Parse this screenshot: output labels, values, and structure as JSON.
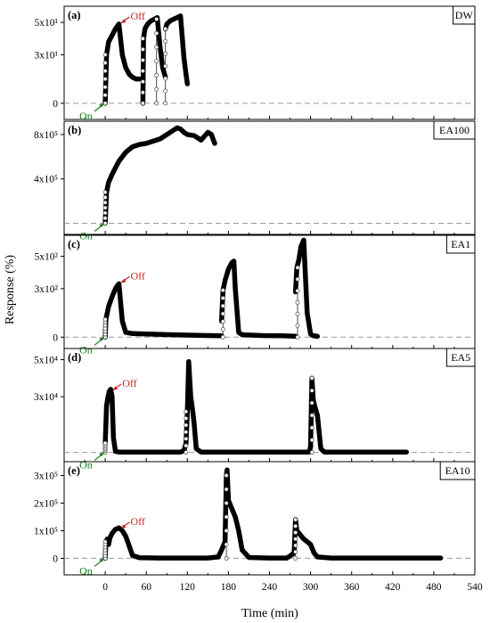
{
  "figure": {
    "ylabel": "Response (%)",
    "xlabel": "Time (min)",
    "x_ticks": [
      "0",
      "60",
      "120",
      "180",
      "240",
      "300",
      "360",
      "420",
      "480",
      "540"
    ],
    "on_label": "On",
    "off_label": "Off",
    "colors": {
      "on": "#1a7a1a",
      "off": "#cc1f1f",
      "trace": "#000000",
      "zero_line": "#999999"
    }
  },
  "chart_data": [
    {
      "type": "line",
      "panel": "(a)",
      "label": "DW",
      "xlim": [
        -60,
        540
      ],
      "ylim": [
        -10,
        60
      ],
      "y_ticks": [
        {
          "v": 0,
          "t": "0"
        },
        {
          "v": 30,
          "t": "3x10¹"
        },
        {
          "v": 50,
          "t": "5x10¹"
        }
      ],
      "annotations": {
        "on": [
          0,
          0
        ],
        "off": [
          20,
          49
        ]
      },
      "series": [
        {
          "x": [
            0,
            2,
            5,
            10,
            15,
            20,
            25,
            30,
            35,
            40,
            45,
            50
          ],
          "y": [
            0,
            30,
            38,
            42,
            46,
            49,
            30,
            22,
            18,
            16,
            15,
            15
          ]
        },
        {
          "x": [
            55,
            56,
            58,
            62,
            67,
            72,
            76,
            80,
            84,
            88
          ],
          "y": [
            0,
            40,
            46,
            49,
            51,
            52,
            53,
            35,
            22,
            16
          ]
        },
        {
          "x": [
            88,
            90,
            95,
            100,
            105,
            110,
            115,
            118,
            120
          ],
          "y": [
            46,
            49,
            51,
            52,
            53,
            54,
            28,
            18,
            12
          ]
        }
      ],
      "jumps": [
        {
          "x": 0,
          "y0": 0,
          "y1": 30
        },
        {
          "x": 55,
          "y0": 0,
          "y1": 40
        },
        {
          "x": 75,
          "y0": 0,
          "y1": 52
        },
        {
          "x": 88,
          "y0": 0,
          "y1": 46
        }
      ]
    },
    {
      "type": "line",
      "panel": "(b)",
      "label": "EA100",
      "xlim": [
        -60,
        540
      ],
      "ylim": [
        -100000,
        920000
      ],
      "y_ticks": [
        {
          "v": 400000,
          "t": "4x10⁵"
        },
        {
          "v": 800000,
          "t": "8x10⁵"
        }
      ],
      "annotations": {
        "on": [
          0,
          0
        ],
        "off": null
      },
      "series": [
        {
          "x": [
            0,
            2,
            5,
            10,
            15,
            20,
            30,
            40,
            50,
            60,
            70,
            80,
            90,
            100,
            105,
            110,
            115,
            120,
            130,
            140,
            150,
            155,
            160
          ],
          "y": [
            0,
            280000,
            370000,
            440000,
            500000,
            560000,
            640000,
            690000,
            710000,
            720000,
            740000,
            760000,
            800000,
            840000,
            860000,
            850000,
            820000,
            800000,
            790000,
            750000,
            820000,
            800000,
            720000
          ]
        }
      ],
      "jumps": [
        {
          "x": 0,
          "y0": 0,
          "y1": 280000
        }
      ]
    },
    {
      "type": "line",
      "panel": "(c)",
      "label": "EA1",
      "xlim": [
        -60,
        540
      ],
      "ylim": [
        -70,
        630
      ],
      "y_ticks": [
        {
          "v": 0,
          "t": "0"
        },
        {
          "v": 300,
          "t": "3x10²"
        },
        {
          "v": 500,
          "t": "5x10²"
        }
      ],
      "annotations": {
        "on": [
          0,
          0
        ],
        "off": [
          20,
          330
        ]
      },
      "series": [
        {
          "x": [
            0,
            1,
            5,
            10,
            15,
            18,
            20,
            25,
            30,
            40,
            60,
            100,
            150,
            170
          ],
          "y": [
            0,
            110,
            190,
            250,
            300,
            320,
            330,
            100,
            30,
            22,
            20,
            15,
            10,
            8
          ]
        },
        {
          "x": [
            170,
            172,
            175,
            180,
            185,
            188,
            190,
            195,
            200,
            230,
            260,
            278
          ],
          "y": [
            100,
            290,
            350,
            420,
            460,
            470,
            300,
            30,
            15,
            10,
            8,
            6
          ]
        },
        {
          "x": [
            278,
            280,
            283,
            286,
            290,
            295,
            300,
            303,
            310
          ],
          "y": [
            280,
            430,
            480,
            560,
            600,
            150,
            20,
            10,
            5
          ]
        }
      ],
      "jumps": [
        {
          "x": 0,
          "y0": 0,
          "y1": 110
        },
        {
          "x": 172,
          "y0": 0,
          "y1": 290
        },
        {
          "x": 281,
          "y0": 0,
          "y1": 430
        }
      ]
    },
    {
      "type": "line",
      "panel": "(d)",
      "label": "EA5",
      "xlim": [
        -60,
        540
      ],
      "ylim": [
        -5000,
        56000
      ],
      "y_ticks": [
        {
          "v": 30000,
          "t": "3x10⁴"
        },
        {
          "v": 50000,
          "t": "5x10⁴"
        }
      ],
      "annotations": {
        "on": [
          0,
          0
        ],
        "off": [
          8,
          33000
        ]
      },
      "series": [
        {
          "x": [
            0,
            2,
            4,
            6,
            8,
            10,
            12,
            15,
            20,
            40,
            80,
            110,
            115,
            118
          ],
          "y": [
            5000,
            25000,
            30000,
            33000,
            34000,
            30000,
            8000,
            500,
            200,
            200,
            200,
            200,
            1000,
            5000
          ]
        },
        {
          "x": [
            118,
            120,
            122,
            125,
            128,
            130,
            133,
            140,
            180,
            250,
            298,
            300
          ],
          "y": [
            5000,
            22000,
            49000,
            30000,
            22000,
            15000,
            2000,
            200,
            200,
            200,
            200,
            3000
          ]
        },
        {
          "x": [
            300,
            302,
            304,
            306,
            310,
            315,
            320,
            330,
            400,
            440
          ],
          "y": [
            3000,
            40000,
            28000,
            25000,
            20000,
            2000,
            200,
            200,
            200,
            200
          ]
        }
      ],
      "jumps": [
        {
          "x": 0,
          "y0": 0,
          "y1": 5000
        },
        {
          "x": 118,
          "y0": 0,
          "y1": 22000
        },
        {
          "x": 302,
          "y0": 0,
          "y1": 40000
        }
      ]
    },
    {
      "type": "line",
      "panel": "(e)",
      "label": "EA10",
      "xlim": [
        -60,
        540
      ],
      "ylim": [
        -60000,
        350000
      ],
      "y_ticks": [
        {
          "v": 0,
          "t": "0"
        },
        {
          "v": 100000,
          "t": "1x10⁵"
        },
        {
          "v": 200000,
          "t": "2x10⁵"
        },
        {
          "v": 300000,
          "t": "3x10⁵"
        }
      ],
      "annotations": {
        "on": [
          0,
          0
        ],
        "off": [
          20,
          105000
        ]
      },
      "series": [
        {
          "x": [
            0,
            1,
            3,
            5,
            7,
            10,
            15,
            20,
            25,
            30,
            40,
            50,
            80,
            150,
            165
          ],
          "y": [
            0,
            60000,
            70000,
            50000,
            75000,
            90000,
            105000,
            110000,
            100000,
            80000,
            10000,
            2000,
            1000,
            1000,
            5000
          ]
        },
        {
          "x": [
            165,
            170,
            175,
            177,
            178,
            180,
            185,
            190,
            195,
            200,
            210,
            240,
            265
          ],
          "y": [
            5000,
            30000,
            60000,
            300000,
            320000,
            210000,
            180000,
            150000,
            100000,
            30000,
            3000,
            1000,
            1000
          ]
        },
        {
          "x": [
            265,
            270,
            276,
            278,
            280,
            285,
            290,
            295,
            300,
            305,
            310,
            330,
            380,
            430,
            490
          ],
          "y": [
            1000,
            8000,
            20000,
            140000,
            100000,
            85000,
            70000,
            60000,
            50000,
            20000,
            5000,
            1000,
            1000,
            1000,
            1000
          ]
        }
      ],
      "jumps": [
        {
          "x": 0,
          "y0": 0,
          "y1": 60000
        },
        {
          "x": 177,
          "y0": 0,
          "y1": 300000
        },
        {
          "x": 278,
          "y0": 0,
          "y1": 140000
        }
      ]
    }
  ]
}
